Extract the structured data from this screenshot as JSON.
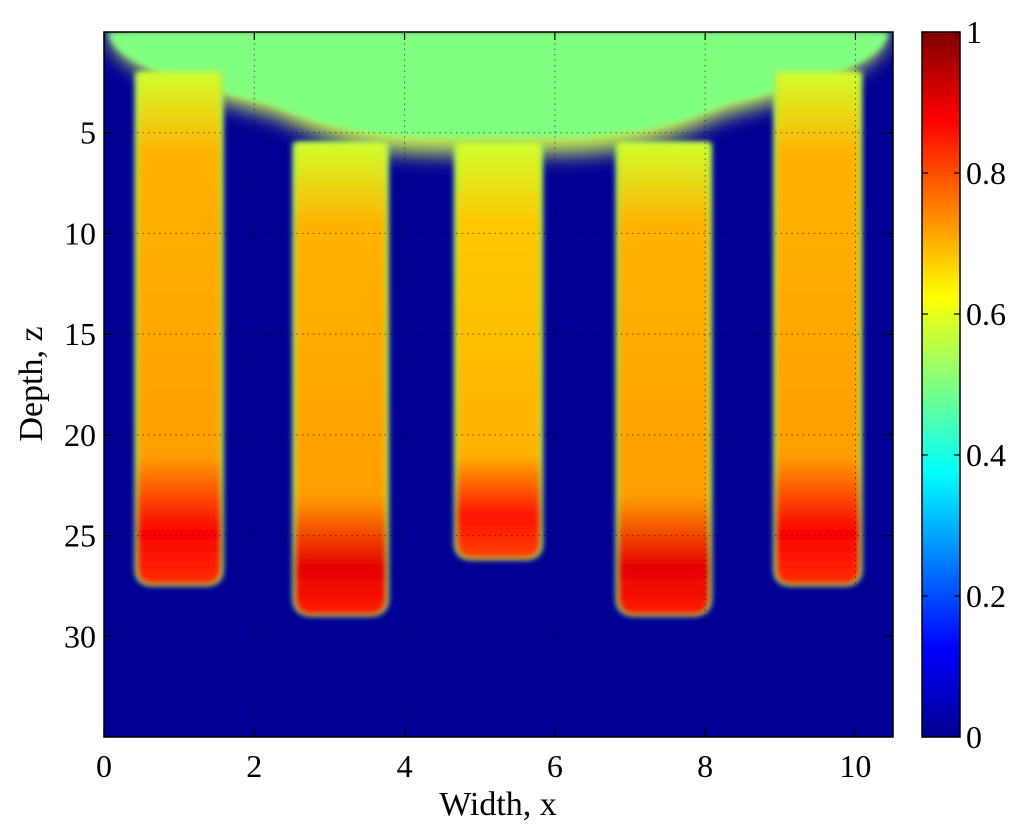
{
  "chart_data": {
    "type": "heatmap",
    "title": "",
    "xlabel": "Width, x",
    "ylabel": "Depth, z",
    "xlim": [
      0,
      10.5
    ],
    "ylim": [
      0,
      35
    ],
    "y_axis_reversed": true,
    "x_ticks": [
      0,
      2,
      4,
      6,
      8,
      10
    ],
    "x_tick_labels": [
      "0",
      "2",
      "4",
      "6",
      "8",
      "10"
    ],
    "y_ticks": [
      5,
      10,
      15,
      20,
      25,
      30
    ],
    "y_tick_labels": [
      "5",
      "10",
      "15",
      "20",
      "25",
      "30"
    ],
    "grid": true,
    "colormap": "jet",
    "color_range": [
      0,
      1
    ],
    "colorbar_ticks": [
      0,
      0.2,
      0.4,
      0.6,
      0.8,
      1
    ],
    "colorbar_tick_labels": [
      "0",
      "0.2",
      "0.4",
      "0.6",
      "0.8",
      "1"
    ],
    "background_value": 0.02,
    "upper_mixing_zone_value": 0.5,
    "fingers": [
      {
        "x_left": 0.45,
        "x_right": 1.55,
        "z_start": 3.0,
        "z_bottom": 27.4,
        "body_value": 0.72,
        "tip_value": 0.88
      },
      {
        "x_left": 2.55,
        "x_right": 3.75,
        "z_start": 6.5,
        "z_bottom": 28.9,
        "body_value": 0.72,
        "tip_value": 0.9
      },
      {
        "x_left": 4.7,
        "x_right": 5.8,
        "z_start": 6.5,
        "z_bottom": 26.1,
        "body_value": 0.7,
        "tip_value": 0.86
      },
      {
        "x_left": 6.85,
        "x_right": 8.05,
        "z_start": 6.5,
        "z_bottom": 28.9,
        "body_value": 0.72,
        "tip_value": 0.9
      },
      {
        "x_left": 8.95,
        "x_right": 10.05,
        "z_start": 3.0,
        "z_bottom": 27.4,
        "body_value": 0.72,
        "tip_value": 0.88
      }
    ]
  }
}
